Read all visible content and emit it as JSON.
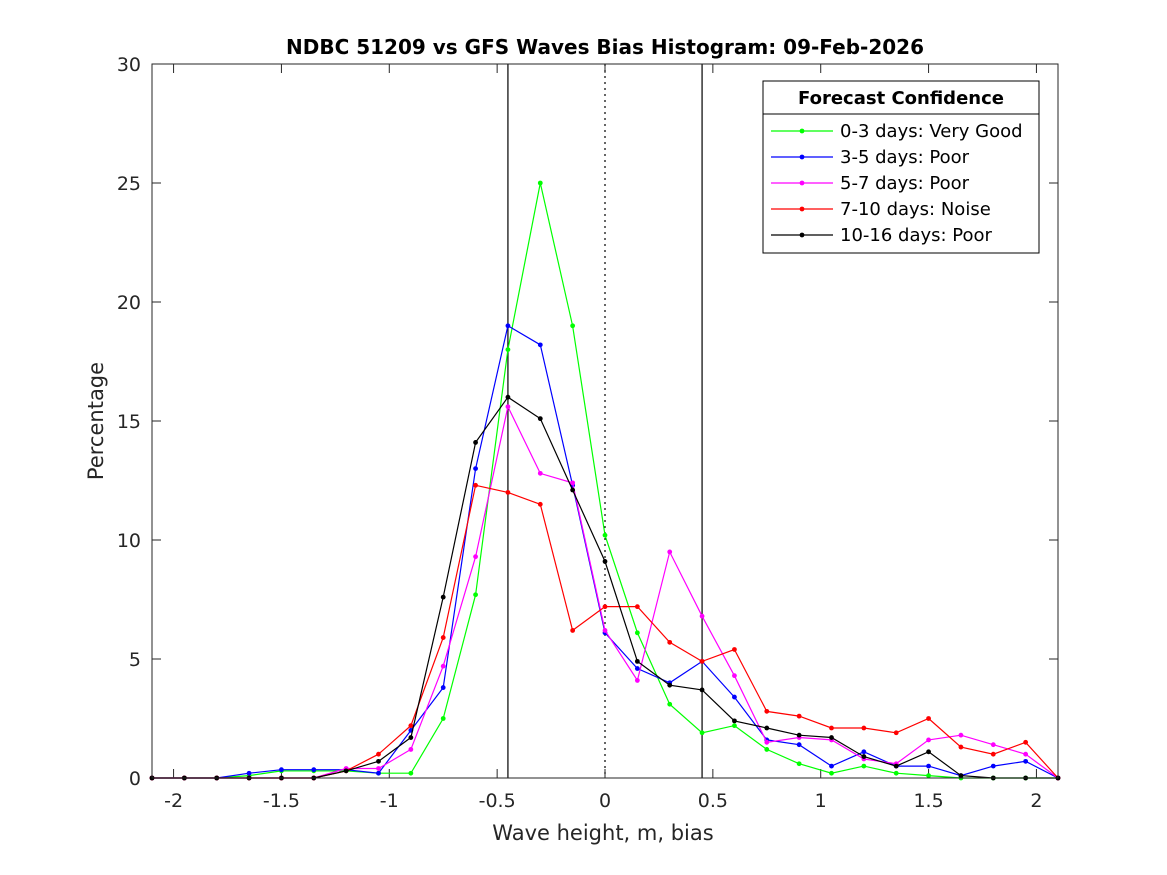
{
  "chart_data": {
    "type": "line",
    "title": "NDBC 51209 vs GFS Waves Bias Histogram: 09-Feb-2026",
    "xlabel": "Wave height, m, bias",
    "ylabel": "Percentage",
    "xlim": [
      -2.1,
      2.1
    ],
    "ylim": [
      0,
      30
    ],
    "xticks": [
      -2,
      -1.5,
      -1,
      -0.5,
      0,
      0.5,
      1,
      1.5,
      2
    ],
    "xtick_labels": [
      "-2",
      "-1.5",
      "-1",
      "-0.5",
      "0",
      "0.5",
      "1",
      "1.5",
      "2"
    ],
    "yticks": [
      0,
      5,
      10,
      15,
      20,
      25,
      30
    ],
    "ytick_labels": [
      "0",
      "5",
      "10",
      "15",
      "20",
      "25",
      "30"
    ],
    "reference_lines": [
      {
        "x": -0.45,
        "style": "solid"
      },
      {
        "x": 0,
        "style": "dotted"
      },
      {
        "x": 0.45,
        "style": "solid"
      }
    ],
    "legend": {
      "title": "Forecast Confidence",
      "placement": "top-right"
    },
    "x": [
      -2.1,
      -1.95,
      -1.8,
      -1.65,
      -1.5,
      -1.35,
      -1.2,
      -1.05,
      -0.9,
      -0.75,
      -0.6,
      -0.45,
      -0.3,
      -0.15,
      0,
      0.15,
      0.3,
      0.45,
      0.6,
      0.75,
      0.9,
      1.05,
      1.2,
      1.35,
      1.5,
      1.65,
      1.8,
      1.95,
      2.1
    ],
    "series": [
      {
        "name": "0-3 days: Very Good",
        "color": "#00ff00",
        "values": [
          0,
          0,
          0,
          0.1,
          0.3,
          0.3,
          0.3,
          0.2,
          0.2,
          2.5,
          7.7,
          18.0,
          25.0,
          19.0,
          10.2,
          6.1,
          3.1,
          1.9,
          2.2,
          1.2,
          0.6,
          0.2,
          0.5,
          0.2,
          0.1,
          0,
          0,
          0,
          0
        ]
      },
      {
        "name": "3-5 days: Poor",
        "color": "#0000ff",
        "values": [
          0,
          0,
          0,
          0.2,
          0.35,
          0.35,
          0.35,
          0.2,
          2.0,
          3.8,
          13.0,
          19.0,
          18.2,
          12.3,
          6.1,
          4.6,
          4.0,
          4.9,
          3.4,
          1.6,
          1.4,
          0.5,
          1.1,
          0.5,
          0.5,
          0.1,
          0.5,
          0.7,
          0
        ]
      },
      {
        "name": "5-7 days: Poor",
        "color": "#ff00ff",
        "values": [
          0,
          0,
          0,
          0,
          0,
          0,
          0.4,
          0.4,
          1.2,
          4.7,
          9.3,
          15.6,
          12.8,
          12.4,
          6.2,
          4.1,
          9.5,
          6.8,
          4.3,
          1.5,
          1.7,
          1.6,
          0.8,
          0.6,
          1.6,
          1.8,
          1.4,
          1.0,
          0
        ]
      },
      {
        "name": "7-10 days: Noise",
        "color": "#ff0000",
        "values": [
          0,
          0,
          0,
          0,
          0,
          0,
          0.3,
          1.0,
          2.2,
          5.9,
          12.3,
          12.0,
          11.5,
          6.2,
          7.2,
          7.2,
          5.7,
          4.9,
          5.4,
          2.8,
          2.6,
          2.1,
          2.1,
          1.9,
          2.5,
          1.3,
          1.0,
          1.5,
          0
        ]
      },
      {
        "name": "10-16 days: Poor",
        "color": "#000000",
        "values": [
          0,
          0,
          0,
          0,
          0,
          0,
          0.3,
          0.7,
          1.7,
          7.6,
          14.1,
          16.0,
          15.1,
          12.1,
          9.1,
          4.9,
          3.9,
          3.7,
          2.4,
          2.1,
          1.8,
          1.7,
          0.9,
          0.5,
          1.1,
          0.1,
          0,
          0,
          0
        ]
      }
    ]
  }
}
